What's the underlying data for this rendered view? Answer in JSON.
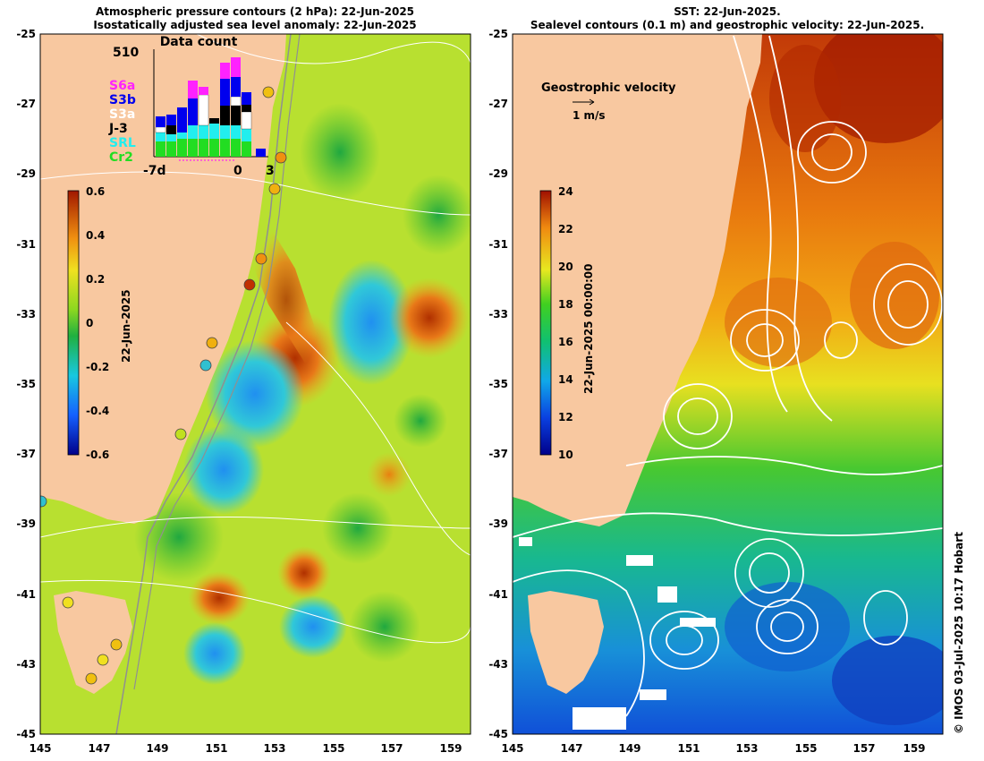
{
  "left_panel": {
    "title_line1": "Atmospheric pressure contours (2 hPa): 22-Jun-2025",
    "title_line2": "Isostatically adjusted sea level anomaly: 22-Jun-2025",
    "y_ticks": [
      "-25",
      "-27",
      "-29",
      "-31",
      "-33",
      "-35",
      "-37",
      "-39",
      "-41",
      "-43",
      "-45"
    ],
    "x_ticks": [
      "145",
      "147",
      "149",
      "151",
      "153",
      "155",
      "157",
      "159"
    ],
    "colorbar": {
      "label": "22-Jun-2025",
      "ticks": [
        "0.6",
        "0.4",
        "0.2",
        "0",
        "-0.2",
        "-0.4",
        "-0.6"
      ],
      "range": [
        -0.6,
        0.6
      ]
    },
    "data_count": {
      "title": "Data count",
      "max_label": "510",
      "x_labels": [
        "-7d",
        "0",
        "3"
      ],
      "legend": [
        {
          "name": "S6a",
          "color": "#ff22ff"
        },
        {
          "name": "S3b",
          "color": "#0000ee"
        },
        {
          "name": "S3a",
          "color": "#ffffff"
        },
        {
          "name": "J-3",
          "color": "#000000"
        },
        {
          "name": "SRL",
          "color": "#22eeee"
        },
        {
          "name": "Cr2",
          "color": "#22dd22"
        }
      ]
    }
  },
  "right_panel": {
    "title_line1": "SST: 22-Jun-2025.",
    "title_line2": "Sealevel contours (0.1 m) and geostrophic velocity: 22-Jun-2025.",
    "y_ticks": [
      "-25",
      "-27",
      "-29",
      "-31",
      "-33",
      "-35",
      "-37",
      "-39",
      "-41",
      "-43",
      "-45"
    ],
    "x_ticks": [
      "145",
      "147",
      "149",
      "151",
      "153",
      "155",
      "157",
      "159"
    ],
    "colorbar": {
      "label": "22-Jun-2025 00:00:00",
      "ticks": [
        "24",
        "22",
        "20",
        "18",
        "16",
        "14",
        "12",
        "10"
      ],
      "range": [
        10,
        24
      ]
    },
    "velocity_legend": {
      "title": "Geostrophic velocity",
      "scale": "1 m/s"
    }
  },
  "credit": "© IMOS 03-Jul-2025 10:17 Hobart"
}
